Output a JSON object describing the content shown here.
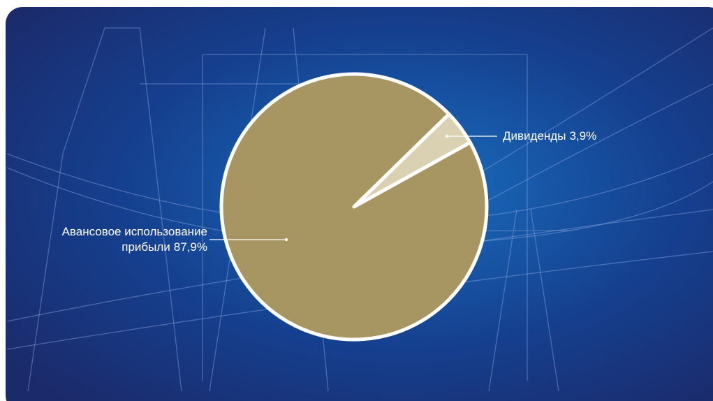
{
  "chart_data": {
    "type": "pie",
    "categories": [
      "Авансовое использование прибыли",
      "Дивиденды"
    ],
    "values": [
      87.9,
      3.9
    ],
    "value_labels": [
      "87,9%",
      "3,9%"
    ],
    "colors": [
      "#a89662",
      "#d9d1b1"
    ]
  }
}
